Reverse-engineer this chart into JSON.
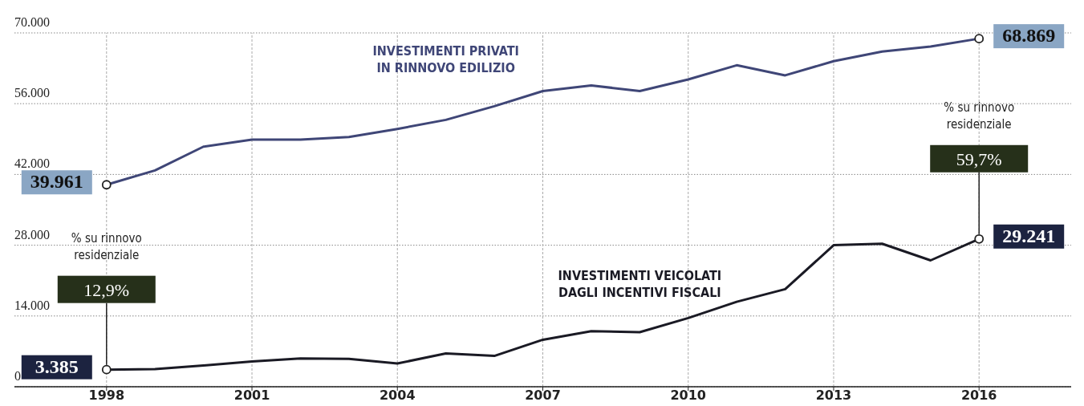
{
  "chart_data": {
    "type": "line",
    "x": [
      1998,
      1999,
      2000,
      2001,
      2002,
      2003,
      2004,
      2005,
      2006,
      2007,
      2008,
      2009,
      2010,
      2011,
      2012,
      2013,
      2014,
      2015,
      2016
    ],
    "series": [
      {
        "name": "INVESTIMENTI PRIVATI\nIN RINNOVO EDILIZIO",
        "color": "#3f4677",
        "values": [
          39961,
          42800,
          47500,
          48900,
          48900,
          49400,
          51000,
          52800,
          55500,
          58500,
          59600,
          58500,
          60800,
          63600,
          61600,
          64400,
          66300,
          67300,
          68869
        ],
        "value_labels": [
          "39.961",
          null,
          null,
          null,
          null,
          null,
          null,
          null,
          null,
          null,
          null,
          null,
          null,
          null,
          null,
          null,
          null,
          null,
          "68.869"
        ]
      },
      {
        "name": "INVESTIMENTI VEICOLATI\nDAGLI INCENTIVI FISCALI",
        "color": "#1a1a24",
        "values": [
          3385,
          3500,
          4200,
          5000,
          5600,
          5500,
          4600,
          6600,
          6100,
          9300,
          11000,
          10800,
          13600,
          16800,
          19300,
          28000,
          28300,
          25000,
          29241
        ],
        "value_labels": [
          "3.385",
          null,
          null,
          null,
          null,
          null,
          null,
          null,
          null,
          null,
          null,
          null,
          null,
          null,
          null,
          null,
          null,
          null,
          "29.241"
        ]
      }
    ],
    "xlim": [
      1996.1,
      2017.9
    ],
    "xticks": [
      1998,
      2001,
      2004,
      2007,
      2010,
      2013,
      2016
    ],
    "ylim": [
      0,
      70000
    ],
    "yticks": [
      {
        "value": 0,
        "label": "0"
      },
      {
        "value": 14000,
        "label": "14.000"
      },
      {
        "value": 28000,
        "label": "28.000"
      },
      {
        "value": 42000,
        "label": "42.000"
      },
      {
        "value": 56000,
        "label": "56.000"
      },
      {
        "value": 70000,
        "label": "70.000"
      }
    ],
    "grid": true,
    "annotations": [
      "% su rinnovo\nresidenziale",
      {
        "text": "12,9%",
        "x": 1998,
        "y": 3385
      },
      "% su rinnovo\nresidenziale",
      {
        "text": "59,7%",
        "x": 2016,
        "y": 29241
      }
    ]
  }
}
